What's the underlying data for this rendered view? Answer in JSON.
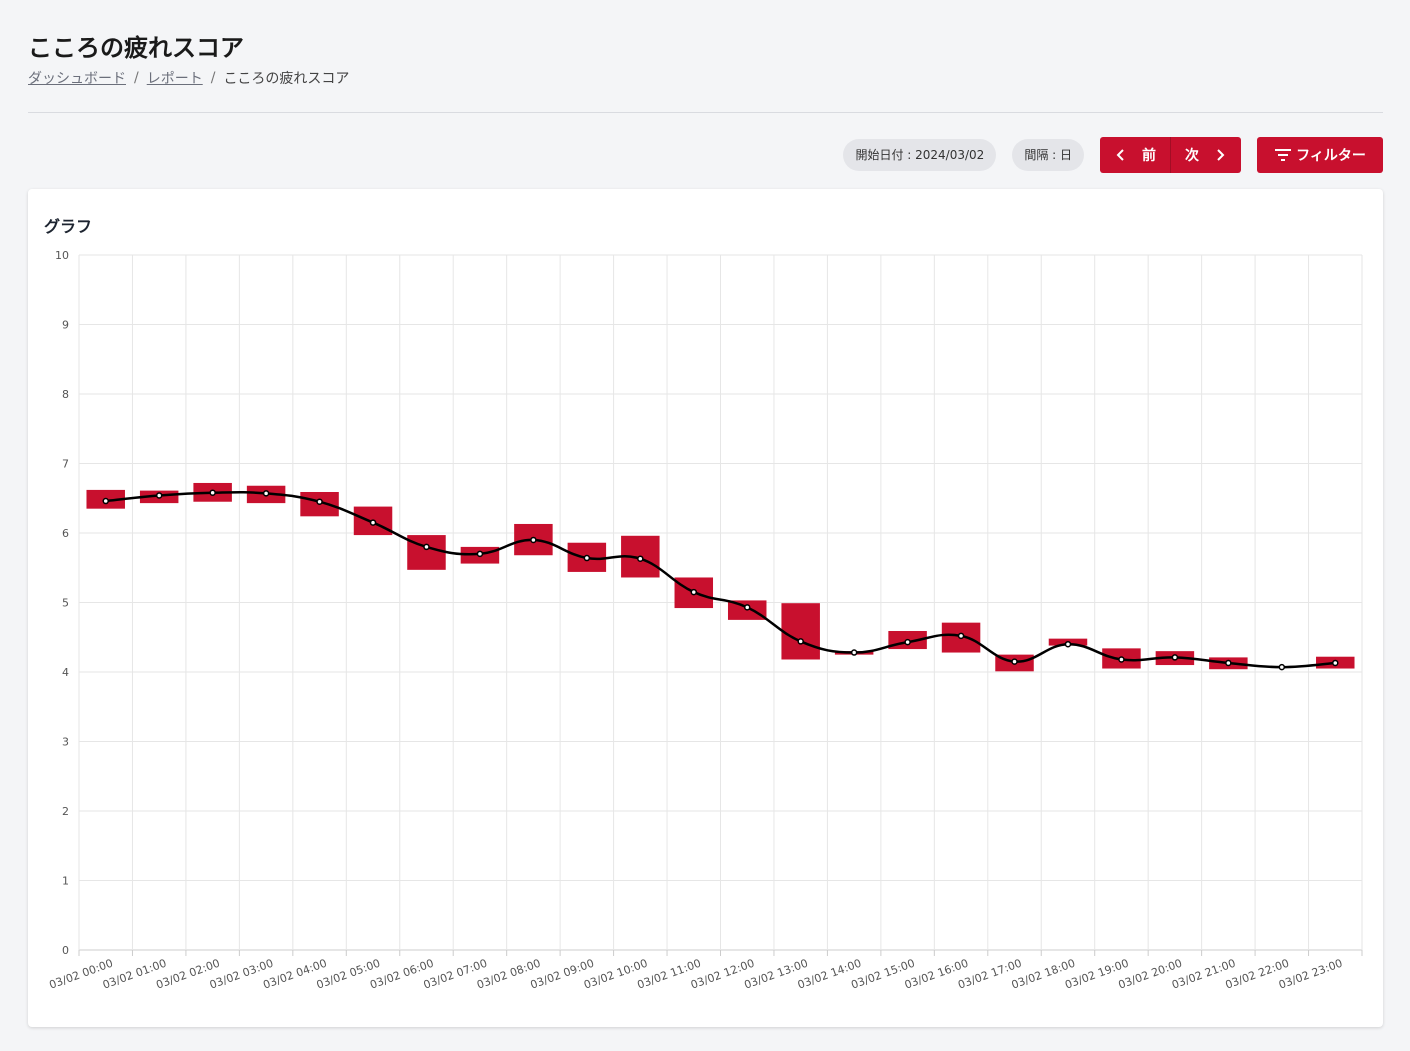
{
  "header": {
    "title": "こころの疲れスコア",
    "breadcrumb": [
      "ダッシュボード",
      "レポート",
      "こころの疲れスコア"
    ]
  },
  "toolbar": {
    "start_date": "開始日付 : 2024/03/02",
    "interval": "間隔 : 日",
    "prev_label": "前",
    "next_label": "次",
    "filter_label": "フィルター",
    "accent_color": "#c8102e"
  },
  "card": {
    "title": "グラフ"
  },
  "chart_data": {
    "type": "bar",
    "categories": [
      "03/02 00:00",
      "03/02 01:00",
      "03/02 02:00",
      "03/02 03:00",
      "03/02 04:00",
      "03/02 05:00",
      "03/02 06:00",
      "03/02 07:00",
      "03/02 08:00",
      "03/02 09:00",
      "03/02 10:00",
      "03/02 11:00",
      "03/02 12:00",
      "03/02 13:00",
      "03/02 14:00",
      "03/02 15:00",
      "03/02 16:00",
      "03/02 17:00",
      "03/02 18:00",
      "03/02 19:00",
      "03/02 20:00",
      "03/02 21:00",
      "03/02 22:00",
      "03/02 23:00"
    ],
    "series": [
      {
        "type": "floating-bar",
        "color": "#c8102e",
        "ranges": [
          [
            6.35,
            6.62
          ],
          [
            6.43,
            6.61
          ],
          [
            6.45,
            6.72
          ],
          [
            6.43,
            6.68
          ],
          [
            6.24,
            6.59
          ],
          [
            5.97,
            6.38
          ],
          [
            5.47,
            5.97
          ],
          [
            5.56,
            5.8
          ],
          [
            5.68,
            6.13
          ],
          [
            5.44,
            5.86
          ],
          [
            5.36,
            5.96
          ],
          [
            4.92,
            5.36
          ],
          [
            4.75,
            5.03
          ],
          [
            4.18,
            4.99
          ],
          [
            4.25,
            4.3
          ],
          [
            4.33,
            4.59
          ],
          [
            4.28,
            4.71
          ],
          [
            4.01,
            4.25
          ],
          [
            4.38,
            4.48
          ],
          [
            4.05,
            4.34
          ],
          [
            4.1,
            4.3
          ],
          [
            4.04,
            4.21
          ],
          [
            4.07,
            4.08
          ],
          [
            4.05,
            4.22
          ]
        ]
      },
      {
        "type": "line",
        "color": "#000000",
        "values": [
          6.46,
          6.54,
          6.58,
          6.57,
          6.45,
          6.15,
          5.8,
          5.7,
          5.9,
          5.64,
          5.63,
          5.15,
          4.93,
          4.44,
          4.28,
          4.43,
          4.52,
          4.15,
          4.4,
          4.18,
          4.21,
          4.13,
          4.07,
          4.13
        ]
      }
    ],
    "ylim": [
      0,
      10
    ],
    "yticks": [
      0,
      1,
      2,
      3,
      4,
      5,
      6,
      7,
      8,
      9,
      10
    ],
    "grid": true,
    "legend": "none",
    "xlabel": "",
    "ylabel": ""
  }
}
